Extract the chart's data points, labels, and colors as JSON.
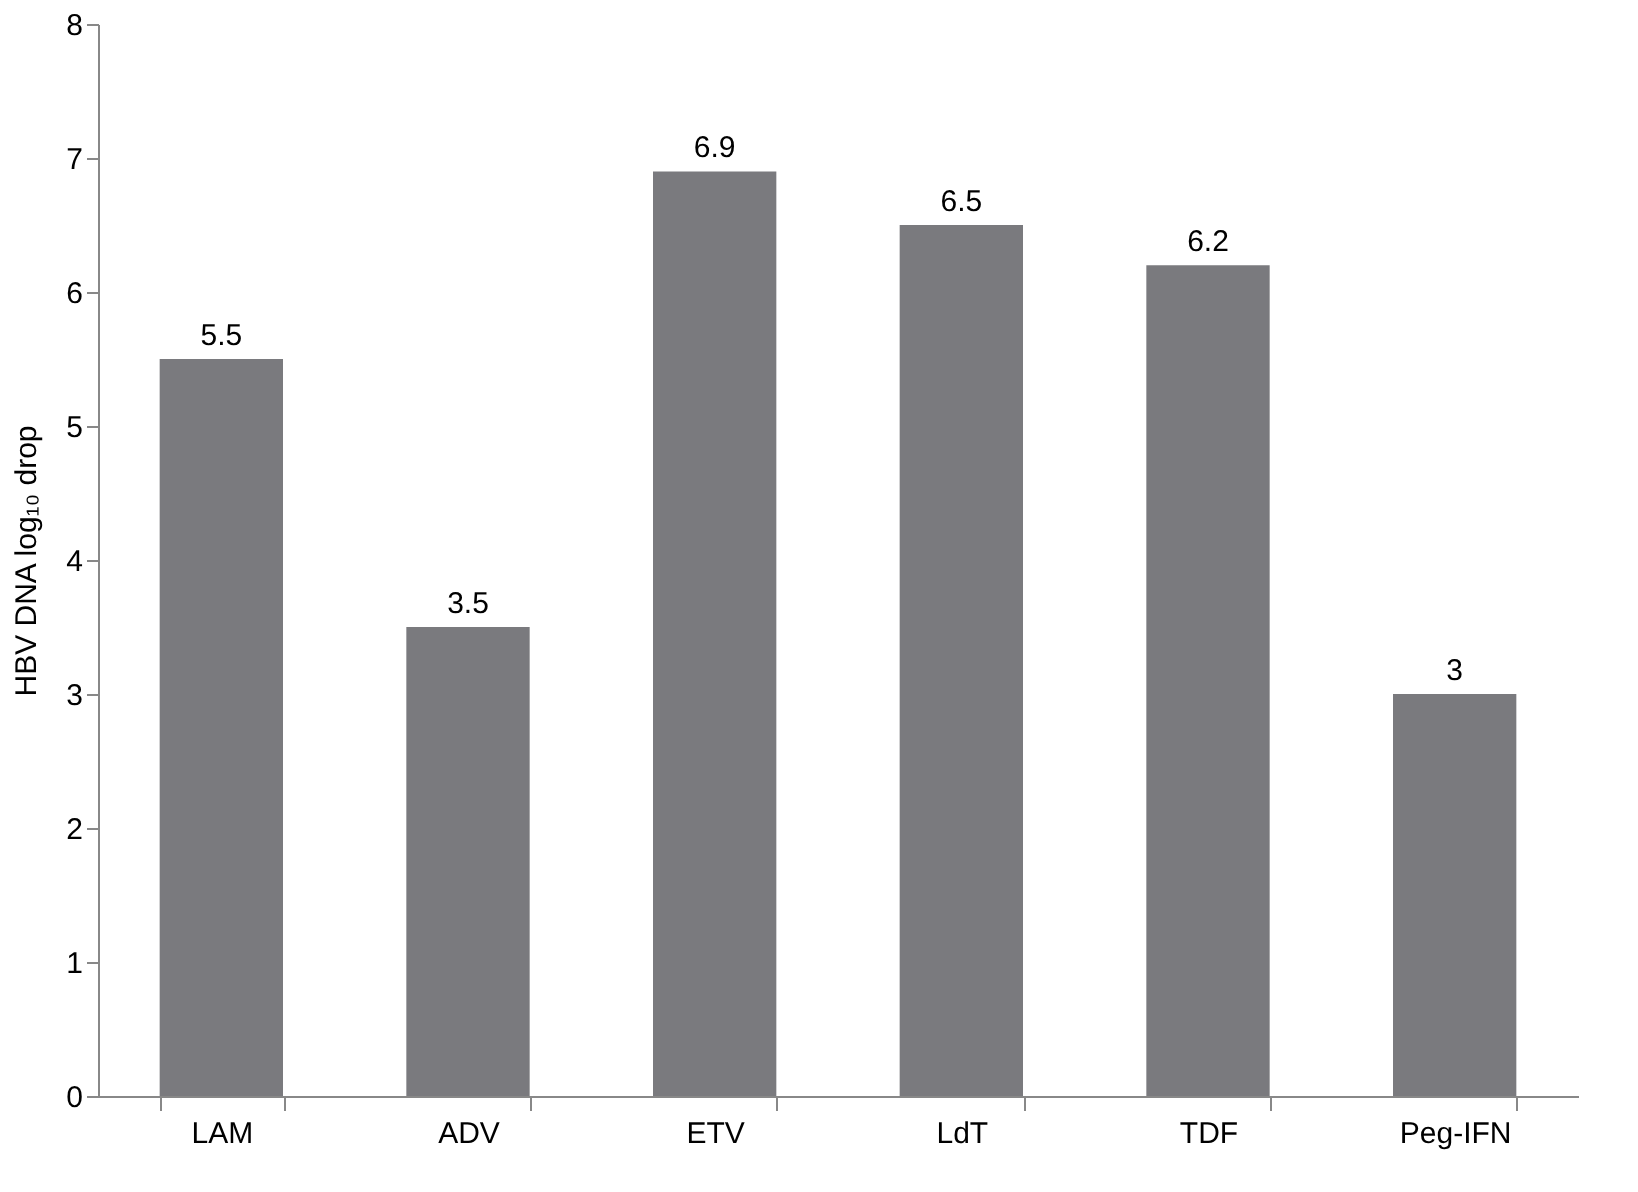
{
  "chart_data": {
    "type": "bar",
    "ylabel": "HBV DNA log₁₀ drop",
    "categories": [
      "LAM",
      "ADV",
      "ETV",
      "LdT",
      "TDF",
      "Peg-IFN"
    ],
    "values": [
      5.5,
      3.5,
      6.9,
      6.5,
      6.2,
      3
    ],
    "color": "#7a7a7e",
    "ylim": [
      0,
      8
    ],
    "yticks": [
      0,
      1,
      2,
      3,
      4,
      5,
      6,
      7,
      8
    ],
    "grid": false,
    "data_labels": true
  }
}
